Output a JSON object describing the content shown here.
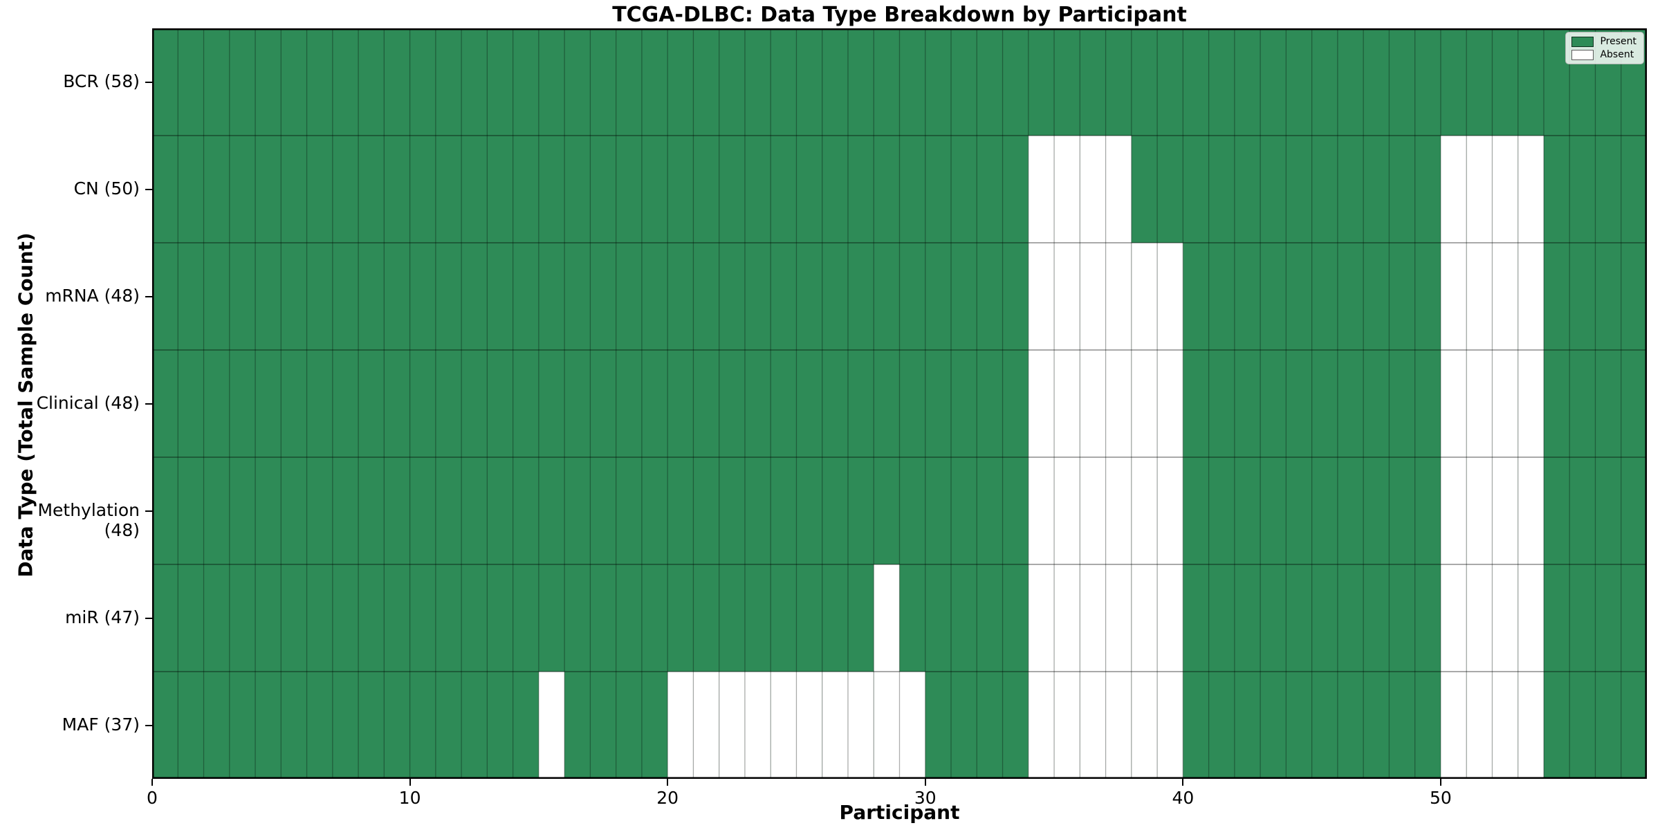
{
  "chart_data": {
    "type": "heatmap",
    "title": "TCGA-DLBC: Data Type Breakdown by Participant",
    "xlabel": "Participant",
    "ylabel": "Data Type (Total Sample Count)",
    "x_ticks": [
      0,
      10,
      20,
      30,
      40,
      50
    ],
    "x_range": [
      0,
      58
    ],
    "n_participants": 58,
    "grid": true,
    "legend_position": "upper right",
    "legend": [
      {
        "label": "Present",
        "color": "#2e8b57"
      },
      {
        "label": "Absent",
        "color": "#ffffff"
      }
    ],
    "colors": {
      "present": "#2e8b57",
      "absent": "#ffffff",
      "grid_v": "rgba(0,0,0,0.32)",
      "grid_h": "rgba(0,0,0,0.45)",
      "border": "#000000"
    },
    "rows": [
      {
        "label": "BCR (58)",
        "name": "BCR",
        "total": 58,
        "absent_participants": []
      },
      {
        "label": "CN (50)",
        "name": "CN",
        "total": 50,
        "absent_participants": [
          34,
          35,
          36,
          37,
          50,
          51,
          52,
          53
        ]
      },
      {
        "label": "mRNA (48)",
        "name": "mRNA",
        "total": 48,
        "absent_participants": [
          34,
          35,
          36,
          37,
          38,
          39,
          50,
          51,
          52,
          53
        ]
      },
      {
        "label": "Clinical (48)",
        "name": "Clinical",
        "total": 48,
        "absent_participants": [
          34,
          35,
          36,
          37,
          38,
          39,
          50,
          51,
          52,
          53
        ]
      },
      {
        "label": "Methylation (48)",
        "name": "Methylation",
        "total": 48,
        "absent_participants": [
          34,
          35,
          36,
          37,
          38,
          39,
          50,
          51,
          52,
          53
        ]
      },
      {
        "label": "miR (47)",
        "name": "miR",
        "total": 47,
        "absent_participants": [
          28,
          34,
          35,
          36,
          37,
          38,
          39,
          50,
          51,
          52,
          53
        ]
      },
      {
        "label": "MAF (37)",
        "name": "MAF",
        "total": 37,
        "absent_participants": [
          15,
          20,
          21,
          22,
          23,
          24,
          25,
          26,
          27,
          28,
          29,
          34,
          35,
          36,
          37,
          38,
          39,
          50,
          51,
          52,
          53
        ]
      }
    ]
  }
}
